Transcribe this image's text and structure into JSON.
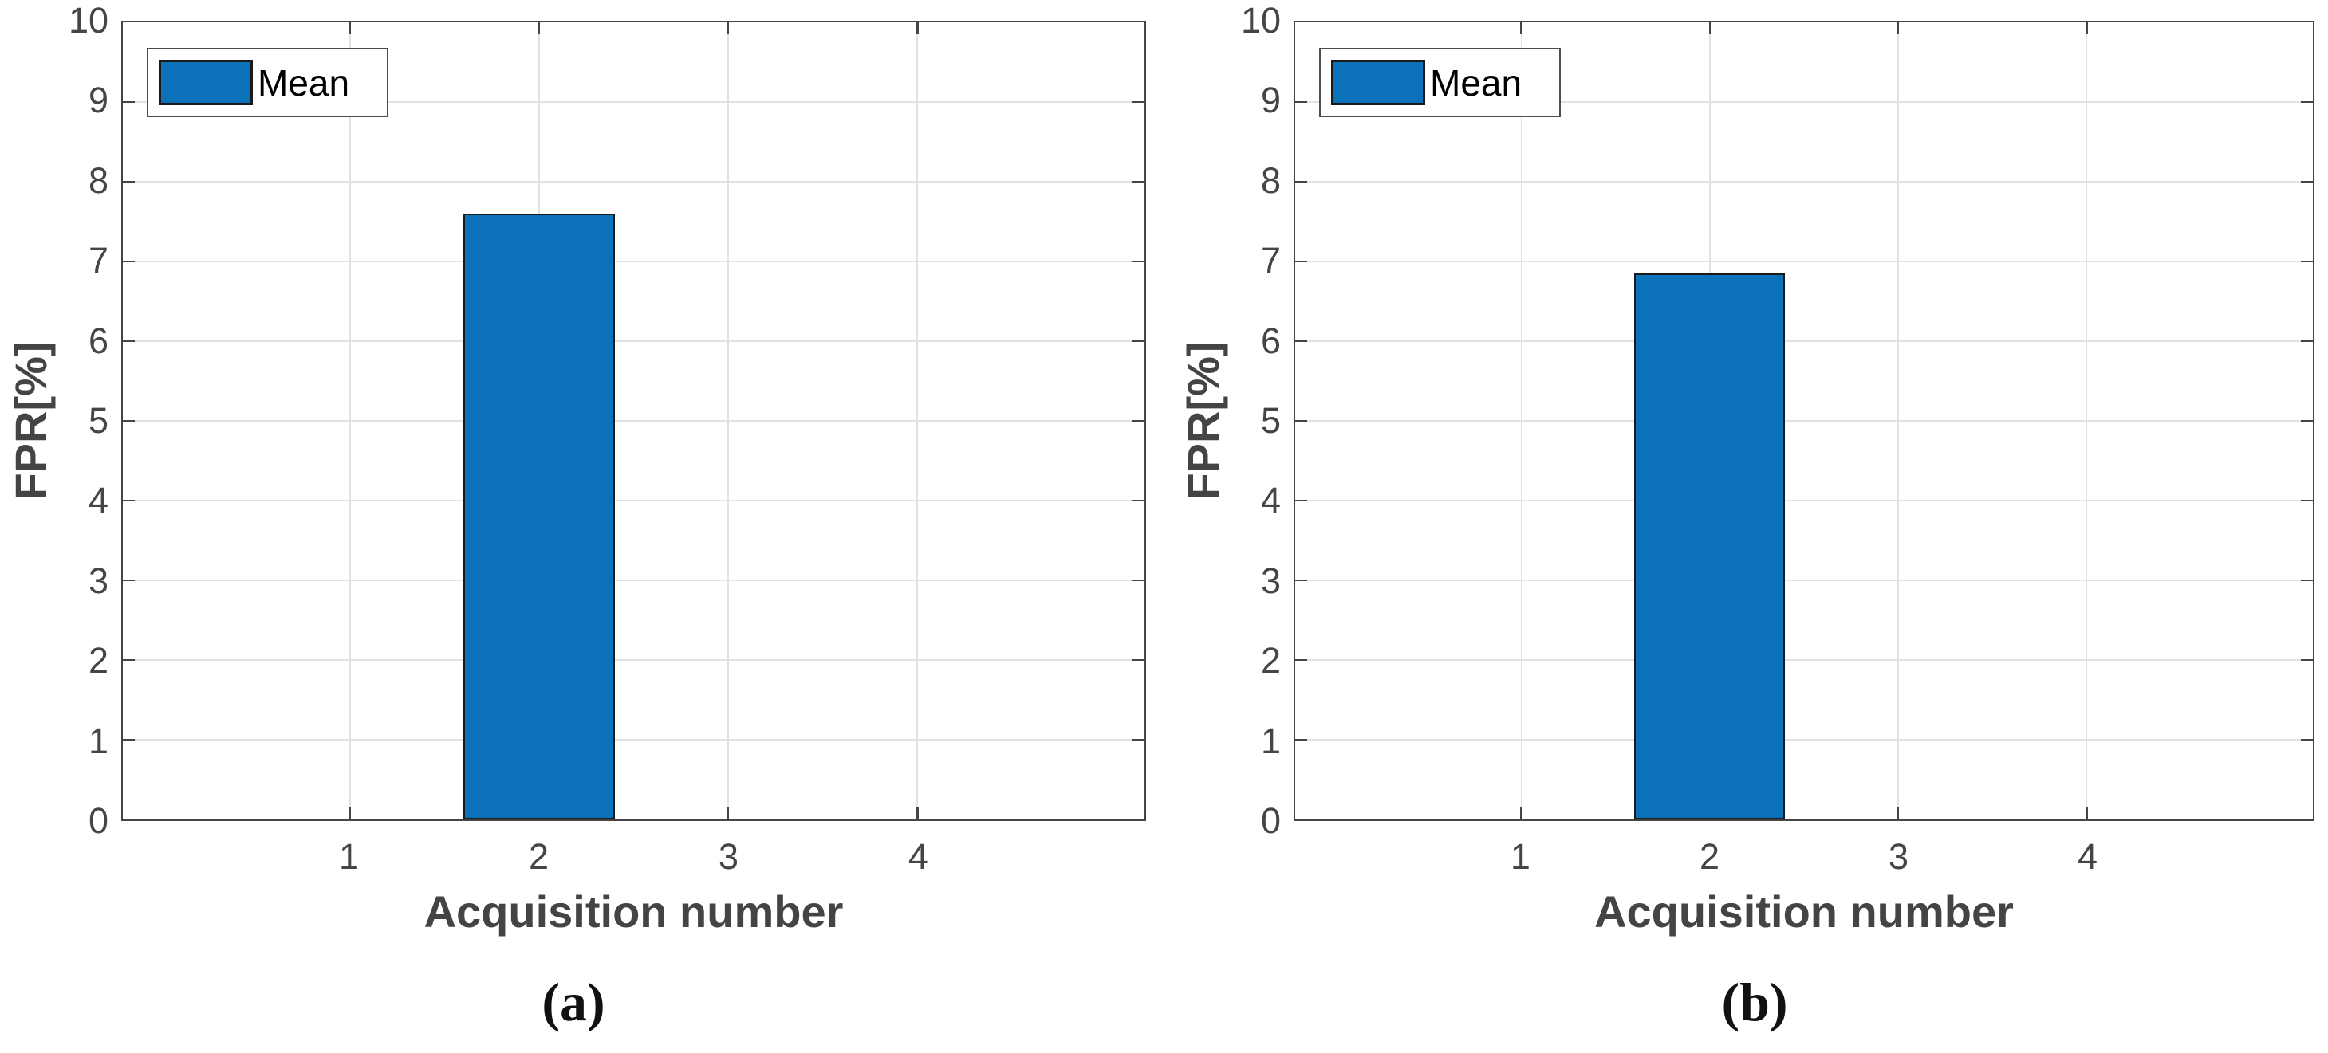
{
  "figure": {
    "background": "#ffffff",
    "caption_a": "(a)",
    "caption_b": "(b)"
  },
  "colors": {
    "bar_fill": "#0b72b9",
    "bar_edge": "#1a1a1a",
    "axis": "#454545",
    "tick_label": "#454545",
    "axis_label": "#444444",
    "grid": "#e2e2e2",
    "legend_border": "#4d4d4d",
    "caption": "#111111"
  },
  "chart_data": [
    {
      "type": "bar",
      "title": "",
      "xlabel": "Acquisition number",
      "ylabel": "FPR[%]",
      "caption": "(a)",
      "categories": [
        1,
        2,
        3,
        4
      ],
      "values": [
        0,
        7.6,
        0,
        0
      ],
      "bar_width": 0.8,
      "xlim": [
        -0.2,
        5.2
      ],
      "ylim": [
        0,
        10
      ],
      "xticks": [
        1,
        2,
        3,
        4
      ],
      "yticks": [
        0,
        1,
        2,
        3,
        4,
        5,
        6,
        7,
        8,
        9,
        10
      ],
      "grid": true,
      "legend": {
        "label": "Mean",
        "position": "northwest"
      }
    },
    {
      "type": "bar",
      "title": "",
      "xlabel": "Acquisition number",
      "ylabel": "FPR[%]",
      "caption": "(b)",
      "categories": [
        1,
        2,
        3,
        4
      ],
      "values": [
        0,
        6.85,
        0,
        0
      ],
      "bar_width": 0.8,
      "xlim": [
        -0.2,
        5.2
      ],
      "ylim": [
        0,
        10
      ],
      "xticks": [
        1,
        2,
        3,
        4
      ],
      "yticks": [
        0,
        1,
        2,
        3,
        4,
        5,
        6,
        7,
        8,
        9,
        10
      ],
      "grid": true,
      "legend": {
        "label": "Mean",
        "position": "northwest"
      }
    }
  ]
}
